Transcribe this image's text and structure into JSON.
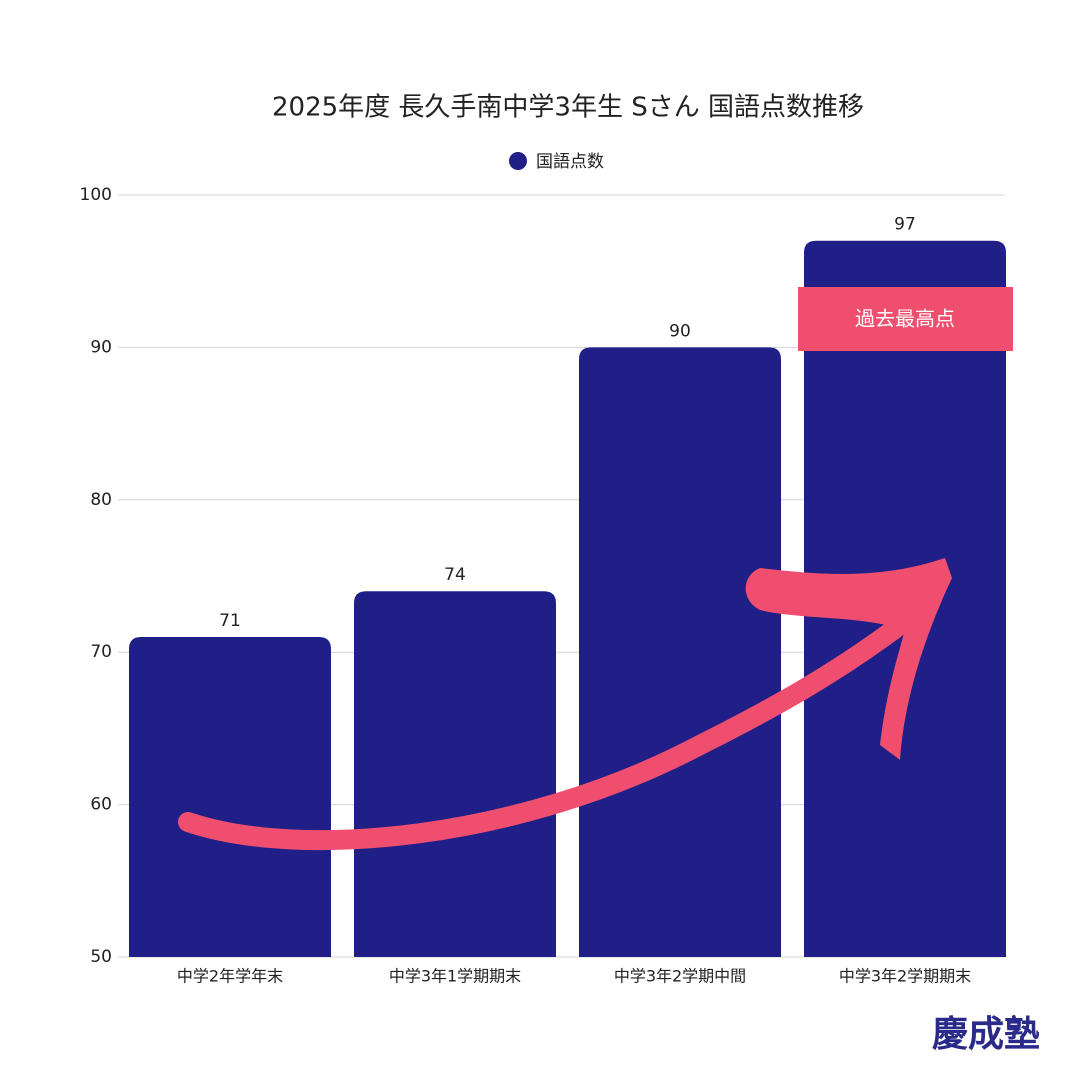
{
  "chart_data": {
    "type": "bar",
    "title": "2025年度 長久手南中学3年生 Sさん 国語点数推移",
    "categories": [
      "中学2年学年末",
      "中学3年1学期期末",
      "中学3年2学期中間",
      "中学3年2学期期末"
    ],
    "series": [
      {
        "name": "国語点数",
        "color": "#1f1f87",
        "values": [
          71,
          74,
          90,
          97
        ]
      }
    ],
    "ylim": [
      50,
      100
    ],
    "yticks": [
      50,
      60,
      70,
      80,
      90,
      100
    ],
    "grid": true,
    "annotation": {
      "text": "過去最高点",
      "color": "#f04e6e"
    }
  },
  "brand": "慶成塾"
}
